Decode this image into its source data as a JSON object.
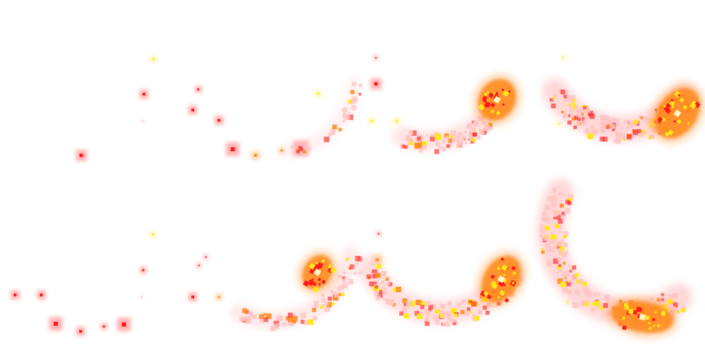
{
  "sprite_sheet": {
    "description_free": true,
    "grid": {
      "rows": 2,
      "columns": 4
    },
    "colors": {
      "background": "#ffffff",
      "ember_red": "#ff1a1a",
      "ember_orange": "#ff8a1e",
      "ember_yellow": "#ffe81a",
      "glow_pink": "#ffc4c4",
      "core_white": "#fff6c8"
    },
    "frames": [
      {
        "id": "row1-frame1",
        "stage": 1,
        "row": 1,
        "column": 1
      },
      {
        "id": "row1-frame2",
        "stage": 2,
        "row": 1,
        "column": 2
      },
      {
        "id": "row1-frame3",
        "stage": 3,
        "row": 1,
        "column": 3
      },
      {
        "id": "row1-frame4",
        "stage": 4,
        "row": 1,
        "column": 4
      },
      {
        "id": "row2-frame1",
        "stage": 1,
        "row": 2,
        "column": 1
      },
      {
        "id": "row2-frame2",
        "stage": 2,
        "row": 2,
        "column": 2
      },
      {
        "id": "row2-frame3",
        "stage": 3,
        "row": 2,
        "column": 3
      },
      {
        "id": "row2-frame4",
        "stage": 4,
        "row": 2,
        "column": 4
      }
    ]
  }
}
